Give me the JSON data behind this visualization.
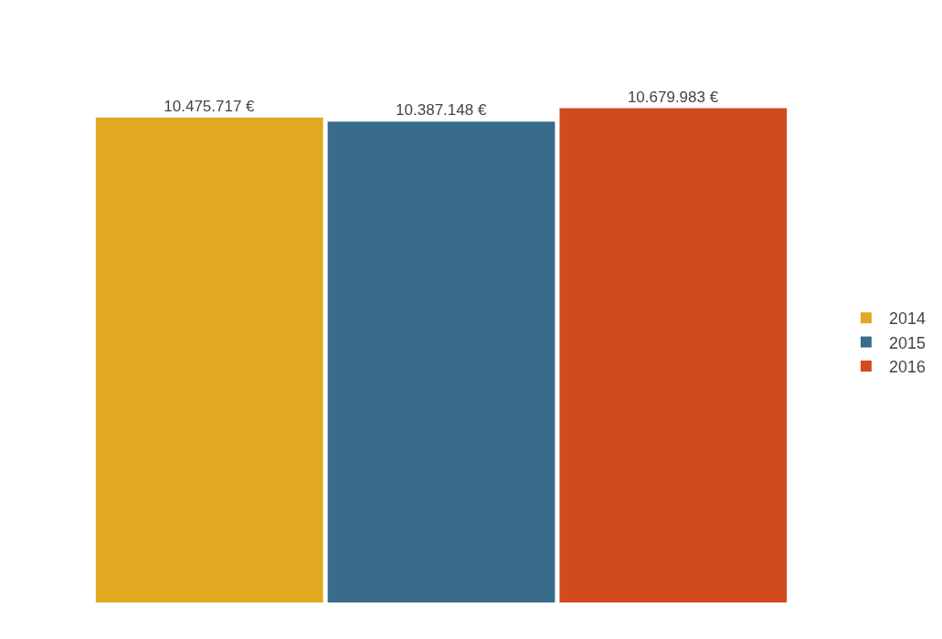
{
  "chart_data": {
    "type": "bar",
    "categories": [
      null
    ],
    "series": [
      {
        "name": "2014",
        "color": "#e0a91f",
        "values": [
          10475717
        ],
        "value_labels": [
          "10.475.717 €"
        ]
      },
      {
        "name": "2015",
        "color": "#386c8a",
        "values": [
          10387148
        ],
        "value_labels": [
          "10.387.148 €"
        ]
      },
      {
        "name": "2016",
        "color": "#d24a1f",
        "values": [
          10679983
        ],
        "value_labels": [
          "10.679.983 €"
        ]
      }
    ],
    "legend": "right",
    "grid": false,
    "tick_labels": false
  }
}
